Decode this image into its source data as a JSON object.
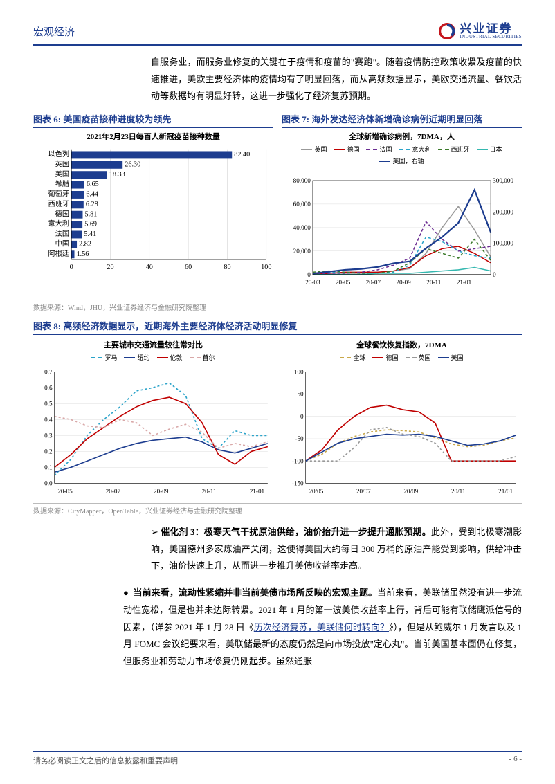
{
  "header": {
    "category": "宏观经济",
    "brand_cn": "兴业证券",
    "brand_en": "INDUSTRIAL SECURITIES"
  },
  "logo": {
    "outer": "#c4151c",
    "inner": "#1d3d8f"
  },
  "intro_para": "自服务业，而服务业修复的关键在于疫情和疫苗的\"赛跑\"。随着疫情防控政策收紧及疫苗的快速推进，美欧主要经济体的疫情均有了明显回落，而从高频数据显示，美欧交通流量、餐饮活动等数据均有明显好转，这进一步强化了经济复苏预期。",
  "chart6": {
    "title": "图表 6:  美国疫苗接种进度较为领先",
    "inner_title": "2021年2月23日每百人新冠疫苗接种数量",
    "type": "bar",
    "categories": [
      "以色列",
      "英国",
      "美国",
      "希腊",
      "葡萄牙",
      "西班牙",
      "德国",
      "意大利",
      "法国",
      "中国",
      "阿根廷"
    ],
    "values": [
      82.4,
      26.3,
      18.33,
      6.65,
      6.44,
      6.28,
      5.81,
      5.69,
      5.41,
      2.82,
      1.56
    ],
    "bar_color": "#1d3d8f",
    "xlim": [
      0,
      100
    ],
    "xtick_step": 20,
    "grid_color": "#cccccc",
    "label_fontsize": 10
  },
  "chart7": {
    "title": "图表 7:  海外发达经济体新增确诊病例近期明显回落",
    "inner_title": "全球新增确诊病例，7DMA，人",
    "type": "line",
    "x_labels": [
      "20-03",
      "20-05",
      "20-07",
      "20-09",
      "20-11",
      "21-01"
    ],
    "left_ylim": [
      0,
      80000
    ],
    "left_ytick_step": 20000,
    "right_ylim": [
      0,
      300000
    ],
    "right_ytick_step": 100000,
    "series": [
      {
        "name": "英国",
        "color": "#999999",
        "dash": "0",
        "right": false
      },
      {
        "name": "德国",
        "color": "#c00000",
        "dash": "0",
        "right": false
      },
      {
        "name": "法国",
        "color": "#6a2c91",
        "dash": "4,3",
        "right": false
      },
      {
        "name": "意大利",
        "color": "#2aa3c9",
        "dash": "4,3",
        "right": false
      },
      {
        "name": "西班牙",
        "color": "#3b7a2a",
        "dash": "4,3",
        "right": false
      },
      {
        "name": "日本",
        "color": "#35b8b0",
        "dash": "0",
        "right": false
      },
      {
        "name": "美国，右轴",
        "color": "#1d3d8f",
        "dash": "0",
        "right": true
      }
    ],
    "grid_color": "#dddddd"
  },
  "chart8": {
    "title": "图表 8:  高频经济数据显示，近期海外主要经济体经济活动明显修复",
    "left": {
      "inner_title": "主要城市交通流量较往常对比",
      "type": "line",
      "x_labels": [
        "20-05",
        "20-07",
        "20-09",
        "20-11",
        "21-01"
      ],
      "ylim": [
        0,
        0.7
      ],
      "ytick_step": 0.1,
      "series": [
        {
          "name": "罗马",
          "color": "#2aa3c9",
          "dash": "3,3"
        },
        {
          "name": "纽约",
          "color": "#1d3d8f",
          "dash": "0"
        },
        {
          "name": "伦敦",
          "color": "#c00000",
          "dash": "0"
        },
        {
          "name": "首尔",
          "color": "#d9a8a8",
          "dash": "3,3"
        }
      ],
      "grid_color": "#dddddd"
    },
    "right": {
      "inner_title": "全球餐饮恢复指数，7DMA",
      "type": "line",
      "x_labels": [
        "20/05",
        "20/07",
        "20/09",
        "20/11",
        "21/01"
      ],
      "ylim": [
        -150,
        100
      ],
      "ytick_step": 50,
      "series": [
        {
          "name": "全球",
          "color": "#c9a84a",
          "dash": "3,3"
        },
        {
          "name": "德国",
          "color": "#c00000",
          "dash": "0"
        },
        {
          "name": "英国",
          "color": "#999999",
          "dash": "3,3"
        },
        {
          "name": "美国",
          "color": "#1d3d8f",
          "dash": "0"
        }
      ],
      "grid_color": "#dddddd"
    }
  },
  "source1": "数据来源：Wind，JHU，兴业证券经济与金融研究院整理",
  "source2": "数据来源：CityMapper，OpenTable，兴业证券经济与金融研究院整理",
  "bullet3": {
    "arrow": "➢",
    "lead": "催化剂 3：极寒天气干扰原油供给，油价抬升进一步提升通胀预期。",
    "rest": "此外，受到北极寒潮影响，美国德州多家炼油产关闭，这使得美国大约每日 300 万桶的原油产能受到影响，供给冲击下，油价快速上升，从而进一步推升美债收益率走高。"
  },
  "bullet_dot": {
    "dot": "●",
    "lead": "当前来看，流动性紧缩并非当前美债市场所反映的宏观主题。",
    "rest1": "当前来看，美联储虽然没有进一步流动性宽松，但是也并未边际转紧。2021 年 1 月的第一波美债收益率上行，背后可能有联储鹰派信号的因素，（详参 2021 年 1 月 28 日《",
    "link": "历次经济复苏，美联储何时转向？",
    "rest2": "》），但是从鲍威尔 1 月发言以及 1 月 FOMC 会议纪要来看，美联储最新的态度仍然是向市场投放\"定心丸\"。当前美国基本面仍在修复，但服务业和劳动力市场修复仍刚起步。虽然通胀"
  },
  "footer": {
    "disclaimer": "请务必阅读正文之后的信息披露和重要声明",
    "page": "- 6 -"
  }
}
